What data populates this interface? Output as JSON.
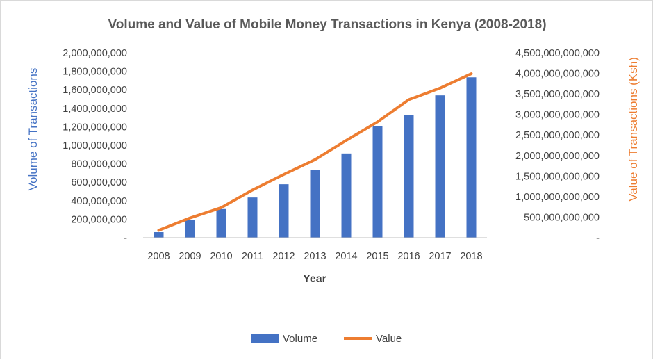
{
  "chart_data": {
    "type": "bar+line",
    "title": "Volume and Value of Mobile Money Transactions in Kenya (2008-2018)",
    "xlabel": "Year",
    "ylabel": "Volume of Transactions",
    "y2label": "Value of Transactions (Ksh)",
    "categories": [
      "2008",
      "2009",
      "2010",
      "2011",
      "2012",
      "2013",
      "2014",
      "2015",
      "2016",
      "2017",
      "2018"
    ],
    "ylim": [
      0,
      2000000000
    ],
    "y2lim": [
      0,
      4500000000000
    ],
    "y_ticks": [
      "-",
      "200,000,000",
      "400,000,000",
      "600,000,000",
      "800,000,000",
      "1,000,000,000",
      "1,200,000,000",
      "1,400,000,000",
      "1,600,000,000",
      "1,800,000,000",
      "2,000,000,000"
    ],
    "y2_ticks": [
      "-",
      "500,000,000,000",
      "1,000,000,000,000",
      "1,500,000,000,000",
      "2,000,000,000,000",
      "2,500,000,000,000",
      "3,000,000,000,000",
      "3,500,000,000,000",
      "4,000,000,000,000",
      "4,500,000,000,000"
    ],
    "series": [
      {
        "name": "Volume",
        "type": "bar",
        "axis": "left",
        "color": "#4472c4",
        "values": [
          60000000,
          190000000,
          310000000,
          435000000,
          578000000,
          733000000,
          911000000,
          1210000000,
          1330000000,
          1540000000,
          1735000000
        ]
      },
      {
        "name": "Value",
        "type": "line",
        "axis": "right",
        "color": "#ed7d31",
        "values": [
          180000000000,
          480000000000,
          730000000000,
          1160000000000,
          1540000000000,
          1900000000000,
          2370000000000,
          2820000000000,
          3360000000000,
          3640000000000,
          3990000000000
        ]
      }
    ],
    "grid": false,
    "legend": "bottom-center"
  }
}
